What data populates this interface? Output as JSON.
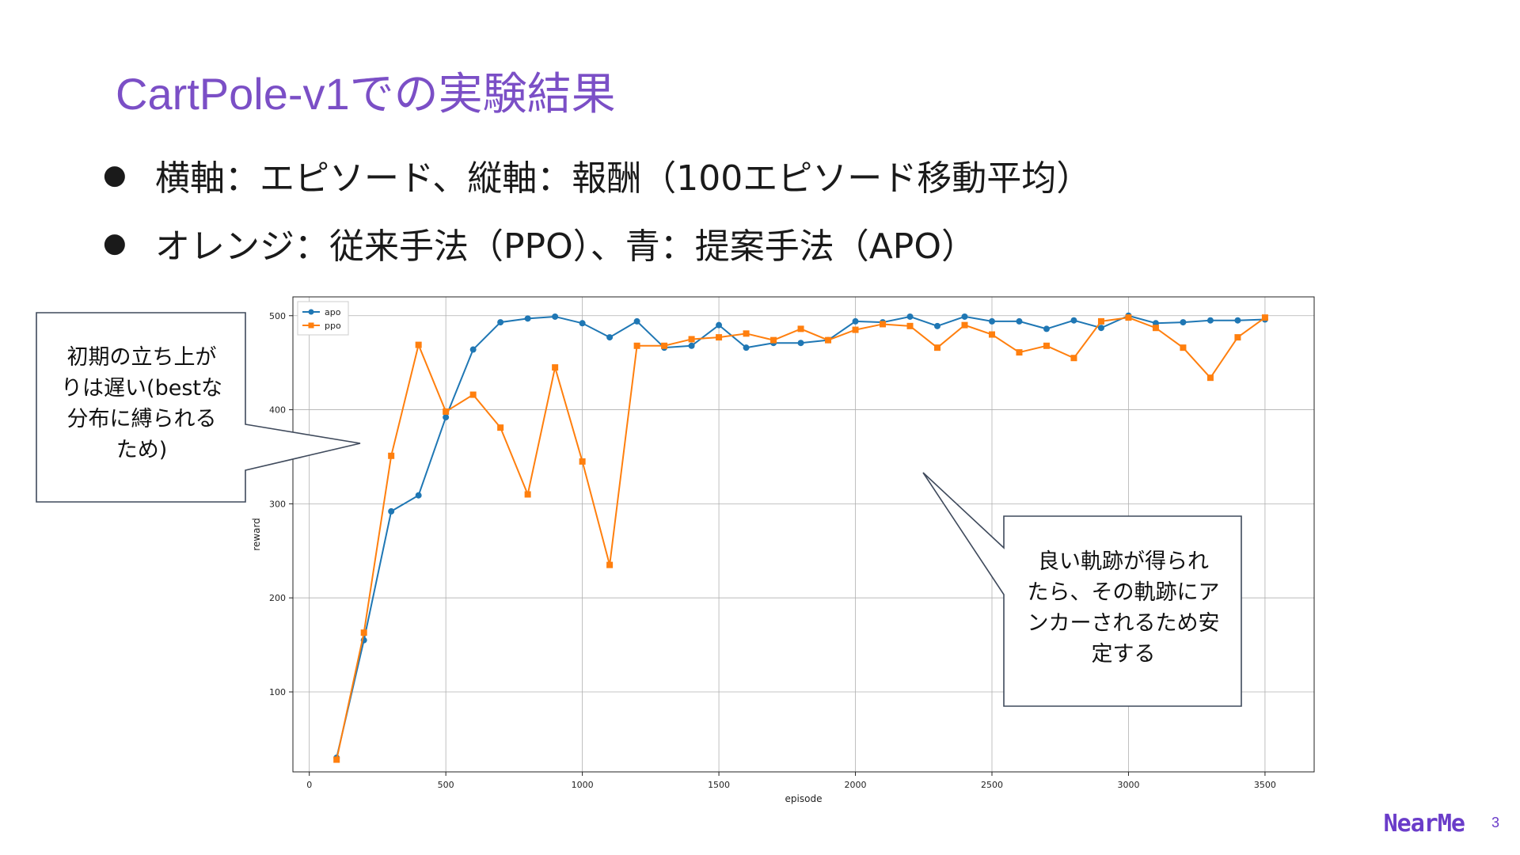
{
  "slide": {
    "title": "CartPole-v1での実験結果",
    "bullets": [
      "横軸：エピソード、縦軸：報酬（100エピソード移動平均）",
      "オレンジ：従来手法（PPO）、青：提案手法（APO）"
    ],
    "bullet_symbol": "●",
    "logo": "NearMe",
    "page_number": "3"
  },
  "callouts": {
    "left": "初期の立ち上が\nりは遅い(bestな\n分布に縛られる\nため)",
    "right": "良い軌跡が得られ\nたら、その軌跡にア\nンカーされるため安\n定する"
  },
  "colors": {
    "title": "#7b4fc6",
    "apo": "#1f77b4",
    "ppo": "#ff7f0e",
    "logo": "#6a3cc9"
  },
  "chart_data": {
    "type": "line",
    "xlabel": "episode",
    "ylabel": "reward",
    "xlim": [
      -60,
      3680
    ],
    "ylim": [
      15,
      520
    ],
    "xticks": [
      0,
      500,
      1000,
      1500,
      2000,
      2500,
      3000,
      3500
    ],
    "yticks": [
      100,
      200,
      300,
      400,
      500
    ],
    "grid": true,
    "legend_position": "top-left",
    "x": [
      100,
      200,
      300,
      400,
      500,
      600,
      700,
      800,
      900,
      1000,
      1100,
      1200,
      1300,
      1400,
      1500,
      1600,
      1700,
      1800,
      1900,
      2000,
      2100,
      2200,
      2300,
      2400,
      2500,
      2600,
      2700,
      2800,
      2900,
      3000,
      3100,
      3200,
      3300,
      3400,
      3500
    ],
    "series": [
      {
        "name": "apo",
        "marker": "circle",
        "values": [
          30,
          155,
          292,
          309,
          392,
          464,
          493,
          497,
          499,
          492,
          477,
          494,
          466,
          468,
          490,
          466,
          471,
          471,
          474,
          494,
          493,
          499,
          489,
          499,
          494,
          494,
          486,
          495,
          487,
          500,
          492,
          493,
          495,
          495,
          496
        ]
      },
      {
        "name": "ppo",
        "marker": "square",
        "values": [
          28,
          163,
          351,
          469,
          398,
          416,
          381,
          310,
          445,
          345,
          235,
          468,
          468,
          475,
          477,
          481,
          474,
          486,
          474,
          485,
          491,
          489,
          466,
          490,
          480,
          461,
          468,
          455,
          494,
          498,
          487,
          466,
          434,
          477,
          498
        ]
      }
    ]
  }
}
